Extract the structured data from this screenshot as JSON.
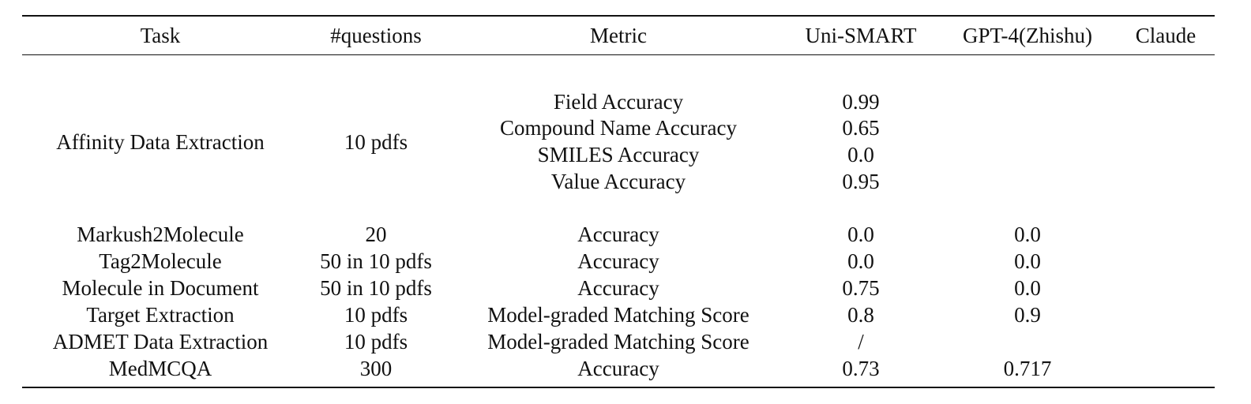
{
  "table": {
    "headers": {
      "task": "Task",
      "questions": "#questions",
      "metric": "Metric",
      "uni_smart": "Uni-SMART",
      "gpt4": "GPT-4(Zhishu)",
      "claude": "Claude"
    },
    "affinity": {
      "task": "Affinity Data Extraction",
      "questions": "10 pdfs",
      "metrics": [
        {
          "metric": "Field Accuracy",
          "uni_smart": "0.99"
        },
        {
          "metric": "Compound Name Accuracy",
          "uni_smart": "0.65"
        },
        {
          "metric": "SMILES Accuracy",
          "uni_smart": "0.0"
        },
        {
          "metric": "Value Accuracy",
          "uni_smart": "0.95"
        }
      ]
    },
    "rows": [
      {
        "task": "Markush2Molecule",
        "questions": "20",
        "metric": "Accuracy",
        "uni_smart": "0.0",
        "gpt4": "0.0",
        "claude": ""
      },
      {
        "task": "Tag2Molecule",
        "questions": "50 in 10 pdfs",
        "metric": "Accuracy",
        "uni_smart": "0.0",
        "gpt4": "0.0",
        "claude": ""
      },
      {
        "task": "Molecule in Document",
        "questions": "50 in 10 pdfs",
        "metric": "Accuracy",
        "uni_smart": "0.75",
        "gpt4": "0.0",
        "claude": ""
      },
      {
        "task": "Target Extraction",
        "questions": "10 pdfs",
        "metric": "Model-graded Matching Score",
        "uni_smart": "0.8",
        "gpt4": "0.9",
        "claude": ""
      },
      {
        "task": "ADMET Data Extraction",
        "questions": "10 pdfs",
        "metric": "Model-graded Matching Score",
        "uni_smart": "/",
        "gpt4": "",
        "claude": ""
      },
      {
        "task": "MedMCQA",
        "questions": "300",
        "metric": "Accuracy",
        "uni_smart": "0.73",
        "gpt4": "0.717",
        "claude": ""
      }
    ]
  }
}
